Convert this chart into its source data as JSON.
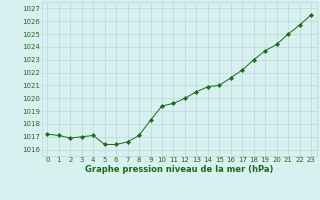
{
  "x": [
    0,
    1,
    2,
    3,
    4,
    5,
    6,
    7,
    8,
    9,
    10,
    11,
    12,
    13,
    14,
    15,
    16,
    17,
    18,
    19,
    20,
    21,
    22,
    23
  ],
  "y": [
    1017.2,
    1017.1,
    1016.9,
    1017.0,
    1017.1,
    1016.4,
    1016.4,
    1016.6,
    1017.1,
    1018.3,
    1019.4,
    1019.6,
    1020.0,
    1020.5,
    1020.9,
    1021.0,
    1021.6,
    1022.2,
    1023.0,
    1023.7,
    1024.2,
    1025.0,
    1025.7,
    1026.5
  ],
  "line_color": "#1a6b1a",
  "marker": "D",
  "marker_size": 2,
  "bg_color": "#d8f0f0",
  "grid_color": "#b8d8d8",
  "xlabel": "Graphe pression niveau de la mer (hPa)",
  "xlabel_color": "#1a6b1a",
  "tick_color": "#1a6b1a",
  "ylim": [
    1015.5,
    1027.5
  ],
  "xlim": [
    -0.5,
    23.5
  ],
  "yticks": [
    1016,
    1017,
    1018,
    1019,
    1020,
    1021,
    1022,
    1023,
    1024,
    1025,
    1026,
    1027
  ],
  "xticks": [
    0,
    1,
    2,
    3,
    4,
    5,
    6,
    7,
    8,
    9,
    10,
    11,
    12,
    13,
    14,
    15,
    16,
    17,
    18,
    19,
    20,
    21,
    22,
    23
  ],
  "tick_fontsize": 5.0,
  "xlabel_fontsize": 6.0,
  "linewidth": 0.7
}
